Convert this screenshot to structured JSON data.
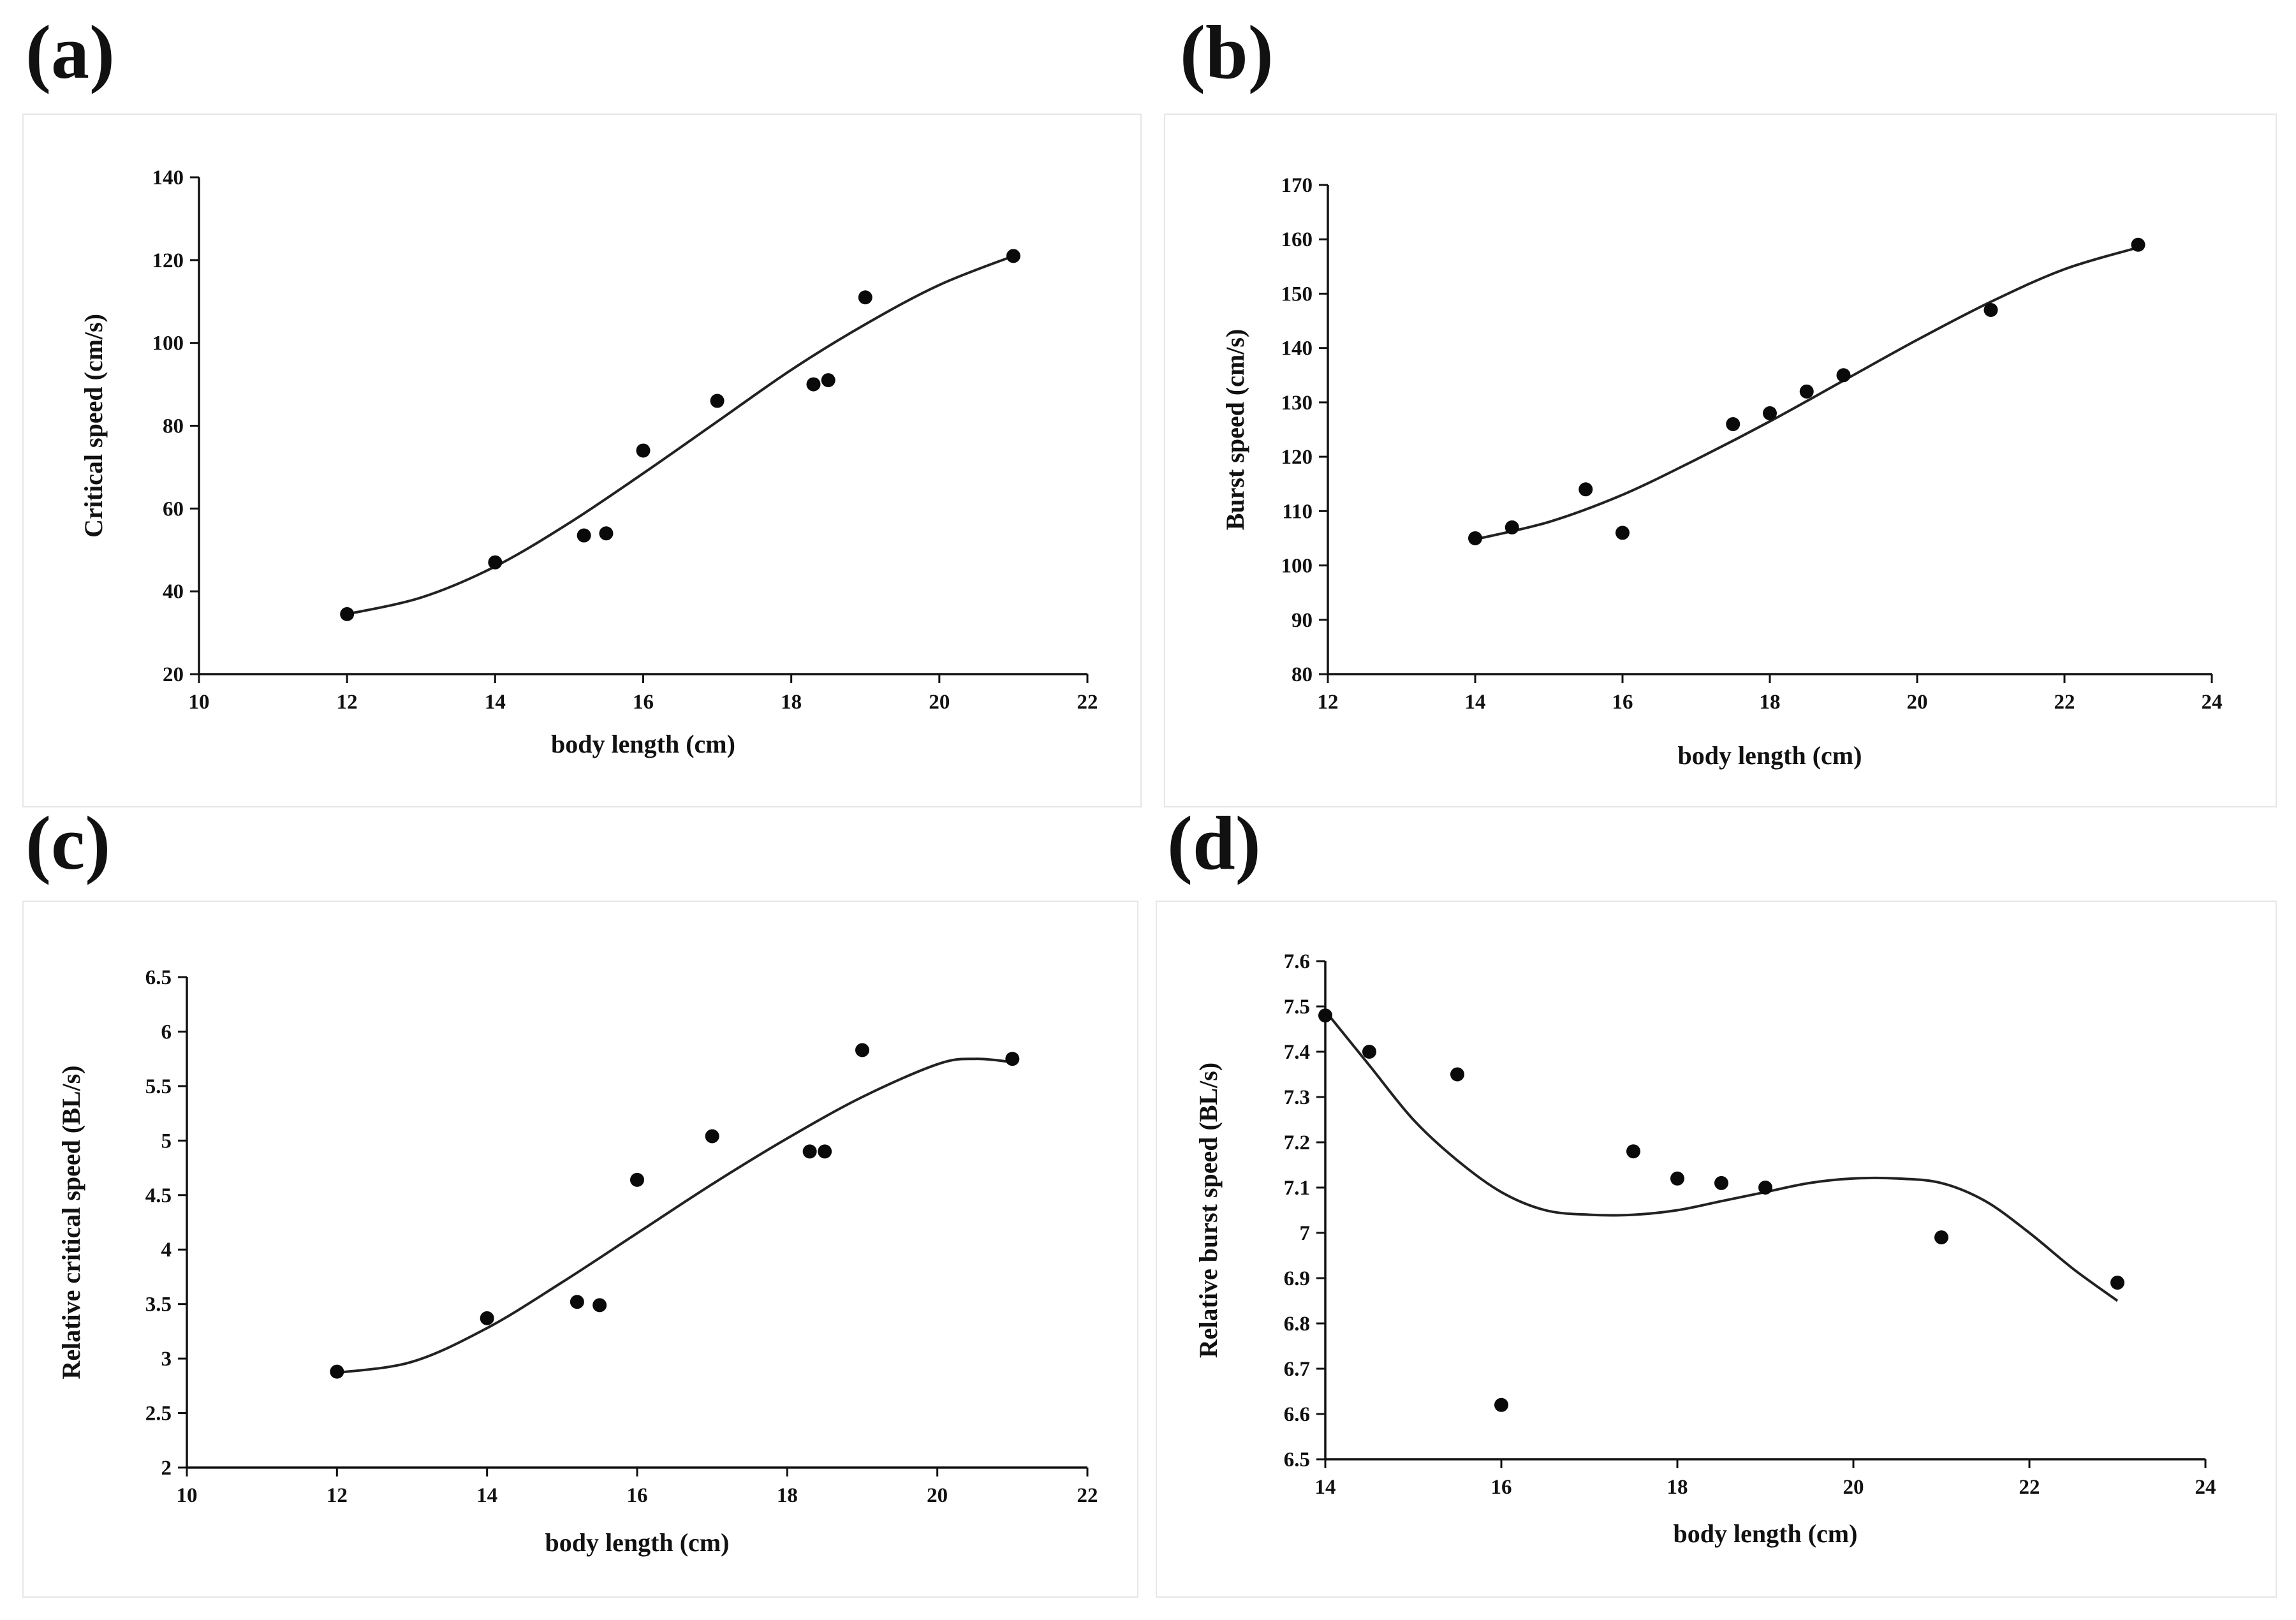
{
  "chart_data": [
    {
      "panel": "(a)",
      "type": "scatter",
      "title": "",
      "xlabel": "body length (cm)",
      "ylabel": "Critical speed (cm/s)",
      "xlim": [
        10,
        22
      ],
      "ylim": [
        20,
        140
      ],
      "xticks": [
        10,
        12,
        14,
        16,
        18,
        20,
        22
      ],
      "yticks": [
        20,
        40,
        60,
        80,
        100,
        120,
        140
      ],
      "x": [
        12,
        14,
        15.2,
        15.5,
        16,
        17,
        18.3,
        18.5,
        19,
        21
      ],
      "y": [
        34.5,
        47,
        53.5,
        54,
        74,
        86,
        90,
        91,
        111,
        121
      ],
      "fit": {
        "type": "polynomial-trend",
        "x": [
          12,
          13,
          14,
          15,
          16,
          17,
          18,
          19,
          20,
          21
        ],
        "y": [
          34.5,
          38.5,
          46,
          56.5,
          68.5,
          81,
          93.5,
          104.5,
          114,
          121
        ]
      }
    },
    {
      "panel": "(b)",
      "type": "scatter",
      "title": "",
      "xlabel": "body length (cm)",
      "ylabel": "Burst speed (cm/s)",
      "xlim": [
        12,
        24
      ],
      "ylim": [
        80,
        170
      ],
      "xticks": [
        12,
        14,
        16,
        18,
        20,
        22,
        24
      ],
      "yticks": [
        80,
        90,
        100,
        110,
        120,
        130,
        140,
        150,
        160,
        170
      ],
      "x": [
        14,
        14.5,
        15.5,
        16,
        17.5,
        18,
        18.5,
        19,
        21,
        23
      ],
      "y": [
        105,
        107,
        114,
        106,
        126,
        128,
        132,
        135,
        147,
        159
      ],
      "fit": {
        "type": "polynomial-trend",
        "x": [
          14,
          15,
          16,
          17,
          18,
          19,
          20,
          21,
          22,
          23
        ],
        "y": [
          104.8,
          108,
          113,
          119.5,
          126.5,
          134,
          141.5,
          148.5,
          154.5,
          158.5
        ]
      }
    },
    {
      "panel": "(c)",
      "type": "scatter",
      "title": "",
      "xlabel": "body length (cm)",
      "ylabel": "Relative critical speed (BL/s)",
      "xlim": [
        10,
        22
      ],
      "ylim": [
        2,
        6.5
      ],
      "xticks": [
        10,
        12,
        14,
        16,
        18,
        20,
        22
      ],
      "yticks": [
        2,
        2.5,
        3,
        3.5,
        4,
        4.5,
        5,
        5.5,
        6,
        6.5
      ],
      "yticklabels": [
        "2",
        "2.5",
        "3",
        "3.5",
        "4",
        "4.5",
        "5",
        "5.5",
        "6",
        "6.5"
      ],
      "x": [
        12,
        14,
        15.2,
        15.5,
        16,
        17,
        18.3,
        18.5,
        19,
        21
      ],
      "y": [
        2.88,
        3.37,
        3.52,
        3.49,
        4.64,
        5.04,
        4.9,
        4.9,
        5.83,
        5.75
      ],
      "fit": {
        "type": "polynomial-trend",
        "x": [
          12,
          13,
          14,
          15,
          16,
          17,
          18,
          19,
          20,
          20.5,
          21
        ],
        "y": [
          2.87,
          2.97,
          3.28,
          3.7,
          4.15,
          4.6,
          5.02,
          5.4,
          5.7,
          5.75,
          5.72
        ]
      }
    },
    {
      "panel": "(d)",
      "type": "scatter",
      "title": "",
      "xlabel": "body length (cm)",
      "ylabel": "Relative burst speed (BL/s)",
      "xlim": [
        14,
        24
      ],
      "ylim": [
        6.5,
        7.6
      ],
      "xticks": [
        14,
        16,
        18,
        20,
        22,
        24
      ],
      "yticks": [
        6.5,
        6.6,
        6.7,
        6.8,
        6.9,
        7,
        7.1,
        7.2,
        7.3,
        7.4,
        7.5,
        7.6
      ],
      "yticklabels": [
        "6.5",
        "6.6",
        "6.7",
        "6.8",
        "6.9",
        "7",
        "7.1",
        "7.2",
        "7.3",
        "7.4",
        "7.5",
        "7.6"
      ],
      "x": [
        14,
        14.5,
        15.5,
        16,
        17.5,
        18,
        18.5,
        19,
        21,
        23
      ],
      "y": [
        7.48,
        7.4,
        7.35,
        6.62,
        7.18,
        7.12,
        7.11,
        7.1,
        6.99,
        6.89
      ],
      "fit": {
        "type": "polynomial-trend",
        "x": [
          14,
          14.5,
          15,
          15.5,
          16,
          16.5,
          17,
          17.5,
          18,
          18.5,
          19,
          19.5,
          20,
          20.5,
          21,
          21.5,
          22,
          22.5,
          23
        ],
        "y": [
          7.49,
          7.37,
          7.25,
          7.16,
          7.09,
          7.05,
          7.04,
          7.04,
          7.05,
          7.07,
          7.09,
          7.11,
          7.12,
          7.12,
          7.11,
          7.07,
          7.0,
          6.92,
          6.85
        ]
      }
    }
  ]
}
